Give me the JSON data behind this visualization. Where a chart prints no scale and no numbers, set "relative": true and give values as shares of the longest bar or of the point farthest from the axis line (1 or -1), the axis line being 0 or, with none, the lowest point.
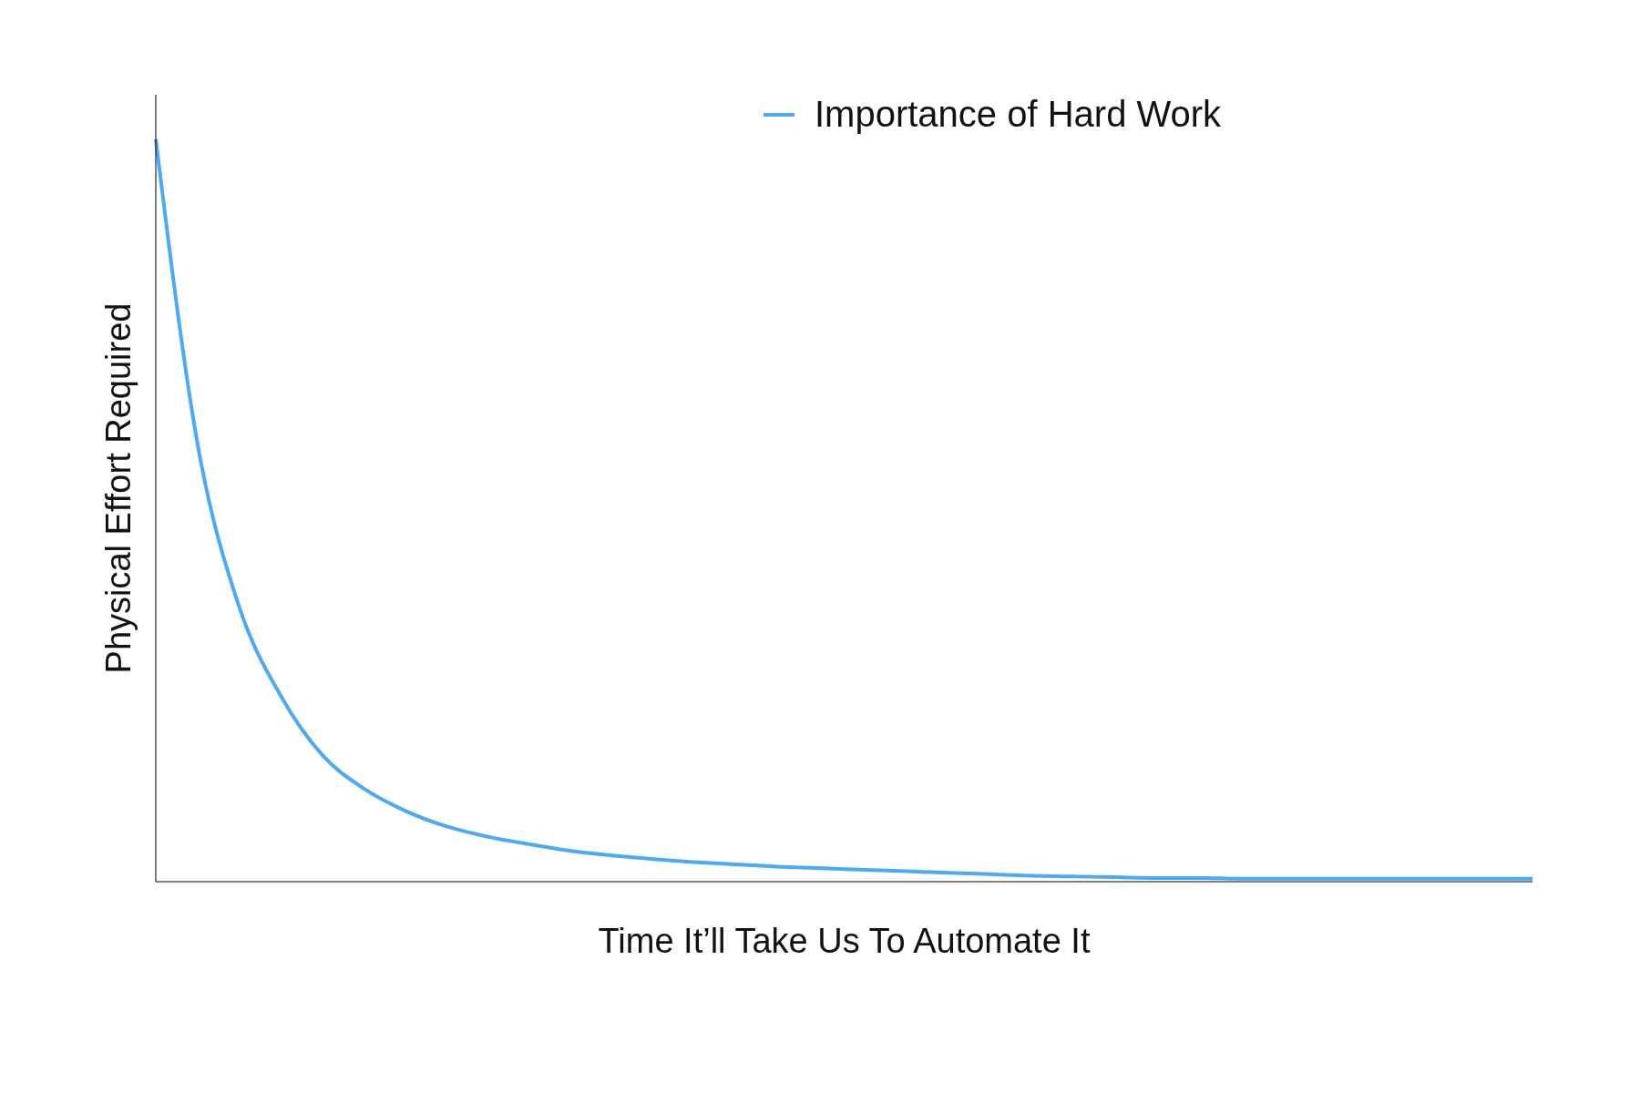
{
  "chart_data": {
    "type": "line",
    "relative": true,
    "xlabel": "Time It’ll Take Us To Automate It",
    "ylabel": "Physical Effort Required",
    "legend": "top right",
    "grid": false,
    "marker": "none",
    "line_style": "solid",
    "categories": [
      null,
      null,
      null,
      null,
      null,
      null,
      null,
      null,
      null,
      null,
      null,
      null,
      null,
      null,
      null,
      null,
      null,
      null,
      null,
      null,
      null,
      null,
      null,
      null,
      null,
      null,
      null,
      null,
      null,
      null,
      null,
      null,
      null,
      null
    ],
    "series": [
      {
        "name": "Importance of Hard Work",
        "color": "#4ba9f7",
        "values": [
          1.0,
          0.59,
          0.37,
          0.25,
          0.17,
          0.125,
          0.095,
          0.074,
          0.06,
          0.05,
          0.041,
          0.035,
          0.03,
          0.026,
          0.023,
          0.02,
          0.018,
          0.016,
          0.014,
          0.012,
          0.01,
          0.008,
          0.007,
          0.006,
          0.005,
          0.005,
          0.004,
          0.004,
          0.004,
          0.004,
          0.004,
          0.004,
          0.004,
          0.004
        ]
      }
    ]
  }
}
